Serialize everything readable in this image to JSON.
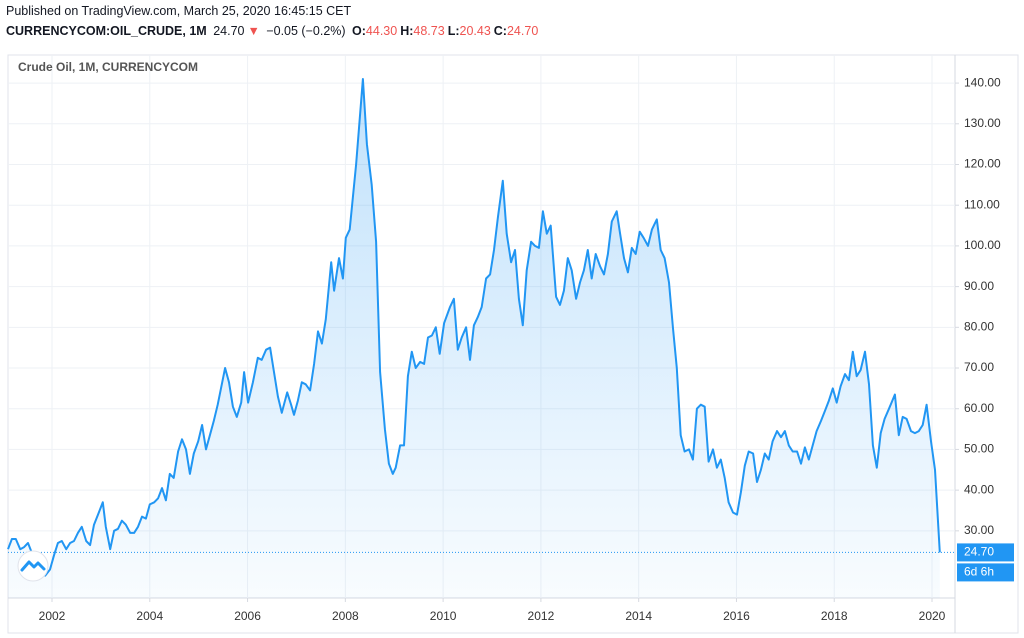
{
  "chart_data": {
    "type": "area",
    "header": {
      "published": "Published on TradingView.com, March 25, 2020 16:45:15 CET",
      "symbol": "CURRENCYCOM:OIL_CRUDE, 1M",
      "last": "24.70",
      "arrow": "▼",
      "change": "−0.05 (−0.2%)",
      "ohlc": [
        {
          "label": "O:",
          "value": "44.30"
        },
        {
          "label": "H:",
          "value": "48.73"
        },
        {
          "label": "L:",
          "value": "20.43"
        },
        {
          "label": "C:",
          "value": "24.70"
        }
      ]
    },
    "title": "Crude Oil, 1M, CURRENCYCOM",
    "countdown": "6d 6h",
    "color": "#2196f3",
    "x": [
      2001.1,
      2001.18,
      2001.26,
      2001.35,
      2001.43,
      2001.51,
      2001.59,
      2001.67,
      2001.75,
      2001.86,
      2001.96,
      2002.04,
      2002.12,
      2002.2,
      2002.29,
      2002.37,
      2002.45,
      2002.53,
      2002.61,
      2002.7,
      2002.78,
      2002.86,
      2002.94,
      2003.04,
      2003.1,
      2003.19,
      2003.27,
      2003.35,
      2003.43,
      2003.51,
      2003.6,
      2003.68,
      2003.76,
      2003.84,
      2003.92,
      2004.0,
      2004.09,
      2004.17,
      2004.25,
      2004.33,
      2004.41,
      2004.49,
      2004.58,
      2004.66,
      2004.74,
      2004.82,
      2004.9,
      2004.99,
      2005.07,
      2005.15,
      2005.23,
      2005.31,
      2005.39,
      2005.54,
      2005.62,
      2005.7,
      2005.78,
      2005.87,
      2005.93,
      2006.01,
      2006.11,
      2006.21,
      2006.29,
      2006.38,
      2006.46,
      2006.54,
      2006.62,
      2006.7,
      2006.81,
      2006.89,
      2006.95,
      2007.03,
      2007.11,
      2007.19,
      2007.28,
      2007.36,
      2007.44,
      2007.52,
      2007.6,
      2007.71,
      2007.77,
      2007.87,
      2007.95,
      2008.01,
      2008.09,
      2008.22,
      2008.36,
      2008.44,
      2008.54,
      2008.63,
      2008.71,
      2008.81,
      2008.89,
      2008.97,
      2009.03,
      2009.12,
      2009.2,
      2009.28,
      2009.36,
      2009.44,
      2009.53,
      2009.61,
      2009.69,
      2009.77,
      2009.85,
      2009.93,
      2010.02,
      2010.14,
      2010.22,
      2010.3,
      2010.38,
      2010.47,
      2010.55,
      2010.63,
      2010.71,
      2010.79,
      2010.88,
      2010.96,
      2011.04,
      2011.12,
      2011.22,
      2011.3,
      2011.39,
      2011.47,
      2011.55,
      2011.63,
      2011.71,
      2011.8,
      2011.88,
      2011.96,
      2012.04,
      2012.12,
      2012.2,
      2012.31,
      2012.39,
      2012.47,
      2012.55,
      2012.63,
      2012.72,
      2012.8,
      2012.88,
      2012.96,
      2013.04,
      2013.12,
      2013.21,
      2013.29,
      2013.37,
      2013.45,
      2013.55,
      2013.62,
      2013.7,
      2013.78,
      2013.86,
      2013.94,
      2014.02,
      2014.1,
      2014.19,
      2014.27,
      2014.37,
      2014.45,
      2014.53,
      2014.62,
      2014.7,
      2014.78,
      2014.86,
      2014.94,
      2015.03,
      2015.11,
      2015.19,
      2015.27,
      2015.35,
      2015.43,
      2015.52,
      2015.6,
      2015.68,
      2015.76,
      2015.84,
      2015.93,
      2016.01,
      2016.09,
      2016.17,
      2016.25,
      2016.34,
      2016.42,
      2016.5,
      2016.58,
      2016.66,
      2016.74,
      2016.83,
      2016.91,
      2016.99,
      2017.07,
      2017.15,
      2017.24,
      2017.32,
      2017.4,
      2017.48,
      2017.56,
      2017.64,
      2017.73,
      2017.81,
      2017.89,
      2017.97,
      2018.05,
      2018.13,
      2018.22,
      2018.3,
      2018.38,
      2018.46,
      2018.54,
      2018.63,
      2018.71,
      2018.79,
      2018.87,
      2018.95,
      2019.03,
      2019.12,
      2019.24,
      2019.32,
      2019.4,
      2019.48,
      2019.57,
      2019.65,
      2019.73,
      2019.81,
      2019.89,
      2019.98,
      2020.06,
      2020.16
    ],
    "values": [
      25.5,
      28,
      28,
      25.5,
      26,
      27,
      24.5,
      22,
      20,
      19,
      20.5,
      24,
      27,
      27.5,
      25.5,
      27,
      27.5,
      29.5,
      31,
      27.5,
      26.5,
      31.5,
      34,
      37,
      31,
      25.5,
      30,
      30.5,
      32.5,
      31.5,
      29.5,
      29.5,
      31,
      33.5,
      33,
      36.5,
      37,
      38,
      40.5,
      37.5,
      44,
      43,
      49.5,
      52.5,
      50,
      44,
      49,
      52,
      56,
      50,
      53.5,
      57,
      61,
      70,
      66.5,
      60.5,
      58,
      61.5,
      69,
      61.5,
      66.5,
      72.5,
      72,
      74.5,
      75,
      69,
      63,
      59,
      64,
      61,
      58.5,
      62,
      66.5,
      66,
      64.5,
      71,
      79,
      76,
      82,
      96,
      89,
      97,
      92,
      102,
      104,
      120,
      141,
      125,
      115,
      101,
      69,
      55,
      46.5,
      44,
      45.5,
      51,
      51,
      68,
      74,
      70,
      71.5,
      71,
      77.5,
      78,
      80,
      73.5,
      81,
      85,
      87,
      74.5,
      77.5,
      80,
      72,
      80.5,
      82.5,
      85,
      92,
      93,
      99,
      107,
      116,
      103,
      96,
      99,
      87,
      80.5,
      94,
      101,
      100,
      99.5,
      108.5,
      103,
      105,
      87.5,
      85.5,
      89,
      97,
      94,
      87,
      91,
      94,
      99,
      92,
      98,
      95,
      93,
      98,
      106,
      108.5,
      103,
      97,
      93.5,
      99.5,
      98,
      103.5,
      102,
      100,
      104,
      106.5,
      99,
      97,
      91,
      80,
      70,
      53.5,
      49.5,
      50,
      47.5,
      60,
      61,
      60.5,
      47,
      50,
      45.5,
      47.5,
      43,
      37,
      34.5,
      34,
      39.5,
      46,
      49.5,
      49,
      42,
      45,
      49,
      47.5,
      52,
      54.5,
      53,
      54.5,
      51,
      49.5,
      49.5,
      46.5,
      50.5,
      47.5,
      51,
      54.5,
      57,
      59.5,
      62,
      65,
      61.5,
      65.5,
      68.5,
      67,
      74,
      68,
      69.5,
      74,
      66,
      51,
      45.5,
      54,
      57.5,
      60,
      63.5,
      53.5,
      58,
      57.5,
      54.5,
      54,
      54.5,
      56,
      61,
      52,
      45,
      24.7
    ],
    "xlim": [
      2001.1,
      2020.47
    ],
    "xticks": [
      2002,
      2004,
      2006,
      2008,
      2010,
      2012,
      2014,
      2016,
      2018,
      2020
    ],
    "ylim": [
      13.5,
      146.9
    ],
    "yticks": [
      {
        "value": 30,
        "label": "30.00"
      },
      {
        "value": 40,
        "label": "40.00"
      },
      {
        "value": 50,
        "label": "50.00"
      },
      {
        "value": 60,
        "label": "60.00"
      },
      {
        "value": 70,
        "label": "70.00"
      },
      {
        "value": 80,
        "label": "80.00"
      },
      {
        "value": 90,
        "label": "90.00"
      },
      {
        "value": 100,
        "label": "100.00"
      },
      {
        "value": 110,
        "label": "110.00"
      },
      {
        "value": 120,
        "label": "120.00"
      },
      {
        "value": 130,
        "label": "130.00"
      },
      {
        "value": 140,
        "label": "140.00"
      }
    ],
    "grid": true
  }
}
